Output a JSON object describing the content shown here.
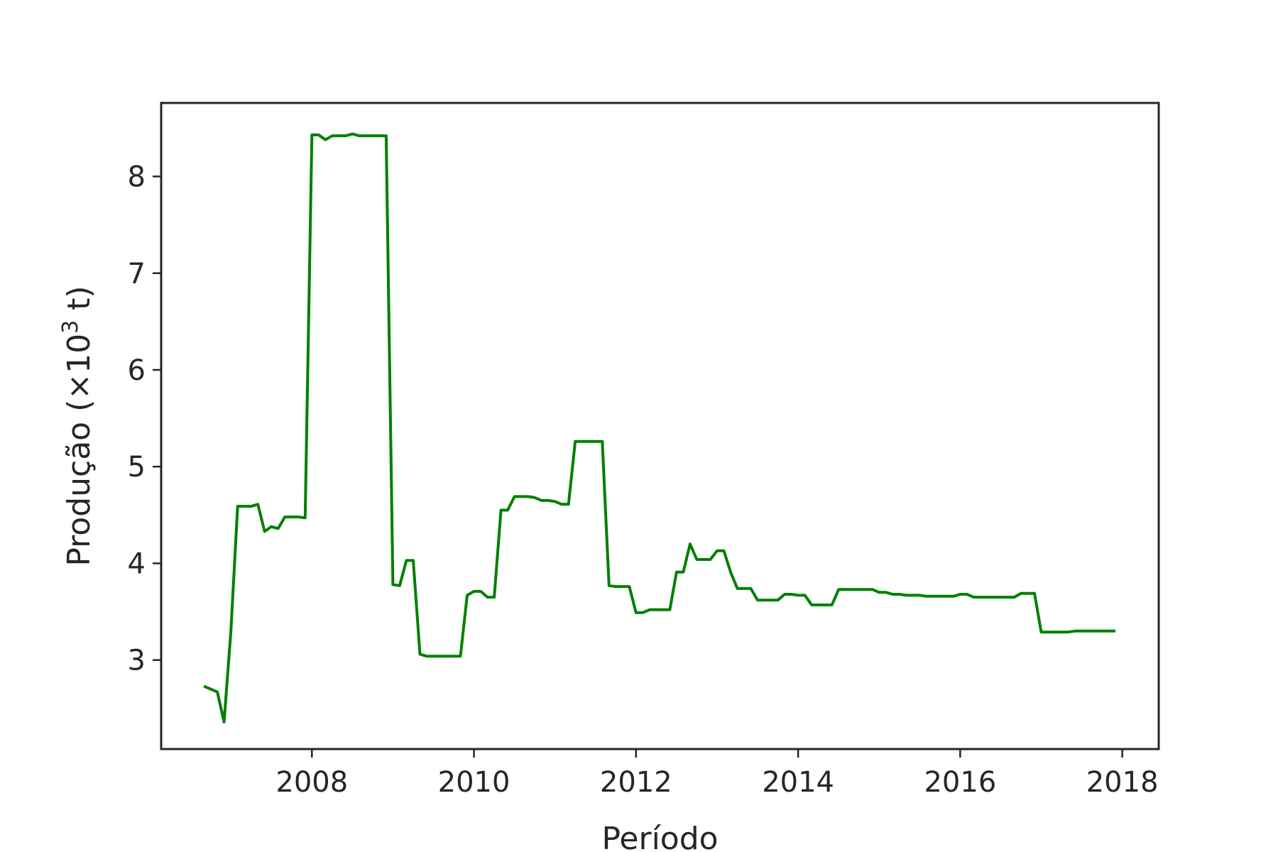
{
  "chart_data": {
    "type": "line",
    "title": "",
    "xlabel": "Período",
    "ylabel": "Produção (×10",
    "ylabel_sup": "3",
    "ylabel_end": " t)",
    "xlim": [
      2006.14,
      2018.45
    ],
    "ylim": [
      2.08,
      8.76
    ],
    "x_ticks": [
      2008,
      2010,
      2012,
      2014,
      2016,
      2018
    ],
    "x_tick_labels": [
      "2008",
      "2010",
      "2012",
      "2014",
      "2016",
      "2018"
    ],
    "y_ticks": [
      3,
      4,
      5,
      6,
      7,
      8
    ],
    "y_tick_labels": [
      "3",
      "4",
      "5",
      "6",
      "7",
      "8"
    ],
    "grid": false,
    "line_color": "#008000",
    "series": [
      {
        "x": [
          "2006-09",
          "2006-10",
          "2006-11",
          "2006-12",
          "2007-01",
          "2007-02",
          "2007-03",
          "2007-04",
          "2007-05",
          "2007-06",
          "2007-07",
          "2007-08",
          "2007-09",
          "2007-10",
          "2007-11",
          "2007-12",
          "2008-01",
          "2008-02",
          "2008-03",
          "2008-04",
          "2008-05",
          "2008-06",
          "2008-07",
          "2008-08",
          "2008-09",
          "2008-10",
          "2008-11",
          "2008-12",
          "2009-01",
          "2009-02",
          "2009-03",
          "2009-04",
          "2009-05",
          "2009-06",
          "2009-07",
          "2009-08",
          "2009-09",
          "2009-10",
          "2009-11",
          "2009-12",
          "2010-01",
          "2010-02",
          "2010-03",
          "2010-04",
          "2010-05",
          "2010-06",
          "2010-07",
          "2010-08",
          "2010-09",
          "2010-10",
          "2010-11",
          "2010-12",
          "2011-01",
          "2011-02",
          "2011-03",
          "2011-04",
          "2011-05",
          "2011-06",
          "2011-07",
          "2011-08",
          "2011-09",
          "2011-10",
          "2011-11",
          "2011-12",
          "2012-01",
          "2012-02",
          "2012-03",
          "2012-04",
          "2012-05",
          "2012-06",
          "2012-07",
          "2012-08",
          "2012-09",
          "2012-10",
          "2012-11",
          "2012-12",
          "2013-01",
          "2013-02",
          "2013-03",
          "2013-04",
          "2013-05",
          "2013-06",
          "2013-07",
          "2013-08",
          "2013-09",
          "2013-10",
          "2013-11",
          "2013-12",
          "2014-01",
          "2014-02",
          "2014-03",
          "2014-04",
          "2014-05",
          "2014-06",
          "2014-07",
          "2014-08",
          "2014-09",
          "2014-10",
          "2014-11",
          "2014-12",
          "2015-01",
          "2015-02",
          "2015-03",
          "2015-04",
          "2015-05",
          "2015-06",
          "2015-07",
          "2015-08",
          "2015-09",
          "2015-10",
          "2015-11",
          "2015-12",
          "2016-01",
          "2016-02",
          "2016-03",
          "2016-04",
          "2016-05",
          "2016-06",
          "2016-07",
          "2016-08",
          "2016-09",
          "2016-10",
          "2016-11",
          "2016-12",
          "2017-01",
          "2017-02",
          "2017-03",
          "2017-04",
          "2017-05",
          "2017-06",
          "2017-07",
          "2017-08",
          "2017-09",
          "2017-10",
          "2017-11",
          "2017-12"
        ],
        "y": [
          2.73,
          2.7,
          2.67,
          2.36,
          3.3,
          4.59,
          4.59,
          4.59,
          4.61,
          4.33,
          4.38,
          4.36,
          4.48,
          4.48,
          4.48,
          4.47,
          8.43,
          8.43,
          8.38,
          8.42,
          8.42,
          8.42,
          8.44,
          8.42,
          8.42,
          8.42,
          8.42,
          8.42,
          3.78,
          3.77,
          4.03,
          4.03,
          3.06,
          3.04,
          3.04,
          3.04,
          3.04,
          3.04,
          3.04,
          3.67,
          3.71,
          3.71,
          3.65,
          3.65,
          4.55,
          4.55,
          4.69,
          4.69,
          4.69,
          4.68,
          4.65,
          4.65,
          4.64,
          4.61,
          4.61,
          5.26,
          5.26,
          5.26,
          5.26,
          5.26,
          3.77,
          3.76,
          3.76,
          3.76,
          3.49,
          3.49,
          3.52,
          3.52,
          3.52,
          3.52,
          3.91,
          3.91,
          4.2,
          4.04,
          4.04,
          4.04,
          4.13,
          4.13,
          3.91,
          3.74,
          3.74,
          3.74,
          3.62,
          3.62,
          3.62,
          3.62,
          3.68,
          3.68,
          3.67,
          3.67,
          3.57,
          3.57,
          3.57,
          3.57,
          3.73,
          3.73,
          3.73,
          3.73,
          3.73,
          3.73,
          3.7,
          3.7,
          3.68,
          3.68,
          3.67,
          3.67,
          3.67,
          3.66,
          3.66,
          3.66,
          3.66,
          3.66,
          3.68,
          3.68,
          3.65,
          3.65,
          3.65,
          3.65,
          3.65,
          3.65,
          3.65,
          3.69,
          3.69,
          3.69,
          3.29,
          3.29,
          3.29,
          3.29,
          3.29,
          3.3,
          3.3,
          3.3,
          3.3,
          3.3,
          3.3,
          3.3
        ]
      }
    ]
  }
}
